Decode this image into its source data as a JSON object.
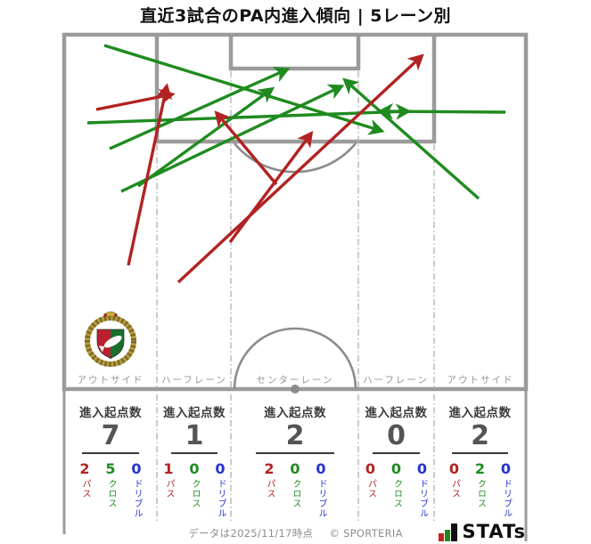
{
  "title": "直近3試合のPA内進入傾向 | 5レーン別",
  "labels": {
    "stats_header": "進入起点数"
  },
  "metric_labels": {
    "pass": "パス",
    "cross": "クロス",
    "dribble": "ドリブル"
  },
  "footer": {
    "data_note": "データは2025/11/17時点",
    "copyright": "© SPORTERIA",
    "logo_text": "STATs"
  },
  "colors": {
    "red": "#b22222",
    "green": "#1f8b1f",
    "blue": "#2533cc",
    "pitch_line": "#9b9b9b",
    "dash_line": "#b5b5b5",
    "muted_text": "#979797"
  },
  "chart_data": {
    "type": "pitch-arrow-map",
    "title": "直近3試合のPA内進入傾向 | 5レーン別",
    "coords": "image pixels, 663x611, attacking goal at top",
    "arrow_colors": {
      "pass": "#b22222",
      "cross": "#1f8b1f"
    },
    "lanes": [
      {
        "label": "アウトサイド",
        "origin_count": 7,
        "pass": 2,
        "cross": 5,
        "dribble": 0
      },
      {
        "label": "ハーフレーン",
        "origin_count": 1,
        "pass": 1,
        "cross": 0,
        "dribble": 0
      },
      {
        "label": "センターレーン",
        "origin_count": 2,
        "pass": 2,
        "cross": 0,
        "dribble": 0
      },
      {
        "label": "ハーフレーン",
        "origin_count": 0,
        "pass": 0,
        "cross": 0,
        "dribble": 0
      },
      {
        "label": "アウトサイド",
        "origin_count": 2,
        "pass": 0,
        "cross": 2,
        "dribble": 0
      }
    ],
    "arrows": [
      {
        "kind": "cross",
        "from": [
          117,
          51
        ],
        "to": [
          428,
          147
        ]
      },
      {
        "kind": "cross",
        "from": [
          98,
          138
        ],
        "to": [
          458,
          125
        ]
      },
      {
        "kind": "cross",
        "from": [
          567,
          126
        ],
        "to": [
          427,
          125
        ]
      },
      {
        "kind": "cross",
        "from": [
          155,
          209
        ],
        "to": [
          305,
          100
        ]
      },
      {
        "kind": "cross",
        "from": [
          136,
          215
        ],
        "to": [
          383,
          97
        ]
      },
      {
        "kind": "cross",
        "from": [
          123,
          167
        ],
        "to": [
          322,
          78
        ]
      },
      {
        "kind": "cross",
        "from": [
          537,
          223
        ],
        "to": [
          387,
          90
        ]
      },
      {
        "kind": "pass",
        "from": [
          108,
          123
        ],
        "to": [
          193,
          106
        ]
      },
      {
        "kind": "pass",
        "from": [
          144,
          298
        ],
        "to": [
          187,
          97
        ]
      },
      {
        "kind": "pass",
        "from": [
          310,
          207
        ],
        "to": [
          243,
          127
        ]
      },
      {
        "kind": "pass",
        "from": [
          258,
          272
        ],
        "to": [
          349,
          150
        ]
      },
      {
        "kind": "pass",
        "from": [
          200,
          317
        ],
        "to": [
          473,
          63
        ]
      }
    ]
  }
}
